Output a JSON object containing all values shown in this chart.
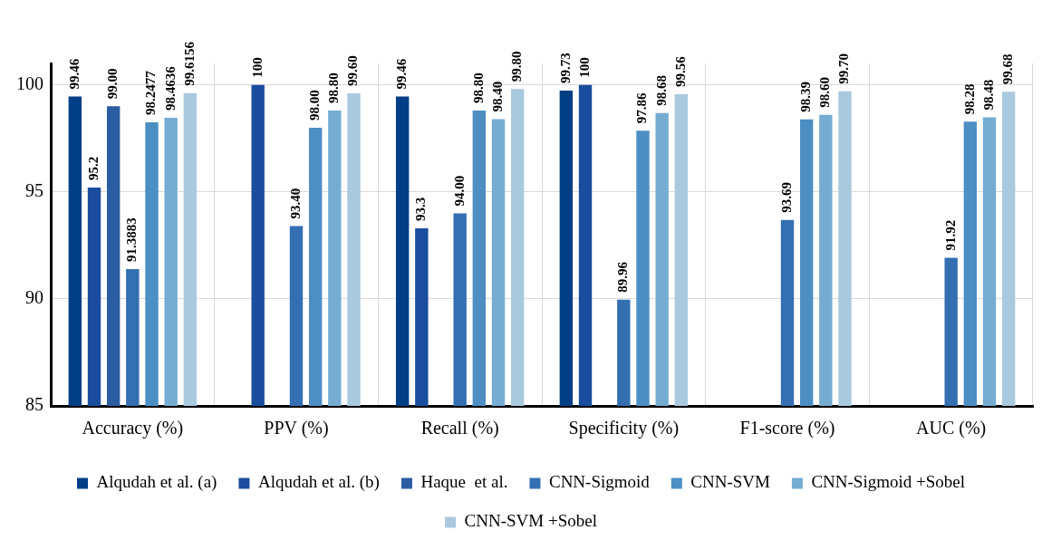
{
  "chart_data": {
    "type": "bar",
    "categories": [
      "Accuracy (%)",
      "PPV (%)",
      "Recall (%)",
      "Specificity (%)",
      "F1-score (%)",
      "AUC (%)"
    ],
    "ylim": [
      85,
      101
    ],
    "yticks": [
      85,
      90,
      95,
      100
    ],
    "grid": true,
    "legend": "bottom",
    "series": [
      {
        "name": "Alqudah et al. (a)",
        "color": "#003e86",
        "values": [
          99.46,
          null,
          99.46,
          99.73,
          null,
          null
        ],
        "value_labels": [
          "99.46",
          null,
          "99.46",
          "99.73",
          null,
          null
        ]
      },
      {
        "name": "Alqudah et al. (b)",
        "color": "#1a4d9e",
        "values": [
          95.2,
          100,
          93.3,
          100,
          null,
          null
        ],
        "value_labels": [
          "95.2",
          "100",
          "93.3",
          "100",
          null,
          null
        ]
      },
      {
        "name": "Haque  et al.",
        "color": "#2c5da3",
        "values": [
          99.0,
          null,
          null,
          null,
          null,
          null
        ],
        "value_labels": [
          "99.00",
          null,
          null,
          null,
          null,
          null
        ]
      },
      {
        "name": "CNN-Sigmoid",
        "color": "#346fb2",
        "values": [
          91.3883,
          93.4,
          94.0,
          89.96,
          93.69,
          91.92
        ],
        "value_labels": [
          "91.3883",
          "93.40",
          "94.00",
          "89.96",
          "93.69",
          "91.92"
        ]
      },
      {
        "name": "CNN-SVM",
        "color": "#4d8ec3",
        "values": [
          98.2477,
          98.0,
          98.8,
          97.86,
          98.39,
          98.28
        ],
        "value_labels": [
          "98.2477",
          "98.00",
          "98.80",
          "97.86",
          "98.39",
          "98.28"
        ]
      },
      {
        "name": "CNN-Sigmoid +Sobel",
        "color": "#75acd2",
        "values": [
          98.4636,
          98.8,
          98.4,
          98.68,
          98.6,
          98.48
        ],
        "value_labels": [
          "98.4636",
          "98.80",
          "98.40",
          "98.68",
          "98.60",
          "98.48"
        ]
      },
      {
        "name": "CNN-SVM +Sobel",
        "color": "#a9c9de",
        "values": [
          99.6156,
          99.6,
          99.8,
          99.56,
          99.7,
          99.68
        ],
        "value_labels": [
          "99.6156",
          "99.60",
          "99.80",
          "99.56",
          "99.70",
          "99.68"
        ]
      }
    ]
  }
}
